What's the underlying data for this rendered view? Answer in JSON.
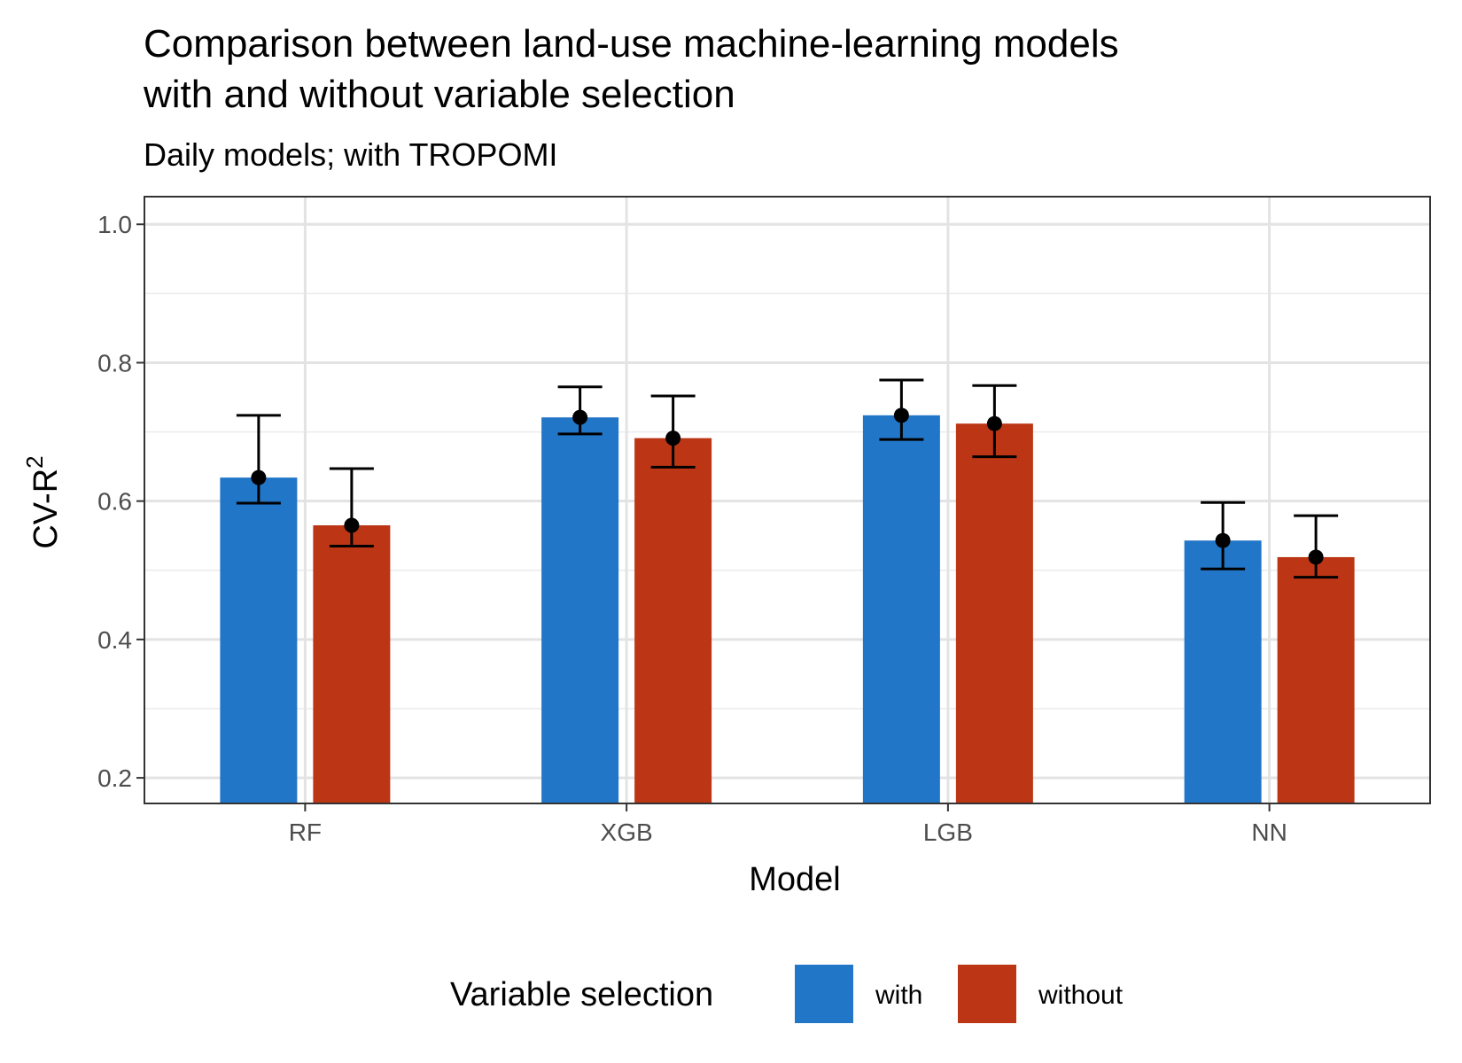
{
  "chart_data": {
    "type": "bar",
    "title_line1": "Comparison between land-use machine-learning models",
    "title_line2": "with and without variable selection",
    "subtitle": "Daily models; with TROPOMI",
    "xlabel": "Model",
    "ylabel_base": "CV-R",
    "ylabel_sup": "2",
    "categories": [
      "RF",
      "XGB",
      "LGB",
      "NN"
    ],
    "ylim": [
      0.163,
      1.04
    ],
    "yticks": [
      0.2,
      0.4,
      0.6,
      0.8,
      1.0
    ],
    "ytick_labels": [
      "0.2",
      "0.4",
      "0.6",
      "0.8",
      "1.0"
    ],
    "grid": true,
    "legend_position": "bottom",
    "legend_title": "Variable selection",
    "series": [
      {
        "name": "with",
        "color": "#2276C8",
        "values": [
          0.634,
          0.721,
          0.724,
          0.543
        ],
        "error_low": [
          0.597,
          0.697,
          0.689,
          0.502
        ],
        "error_high": [
          0.724,
          0.765,
          0.775,
          0.598
        ]
      },
      {
        "name": "without",
        "color": "#BC3616",
        "values": [
          0.565,
          0.691,
          0.712,
          0.519
        ],
        "error_low": [
          0.535,
          0.649,
          0.664,
          0.49
        ],
        "error_high": [
          0.647,
          0.752,
          0.767,
          0.579
        ]
      }
    ]
  }
}
